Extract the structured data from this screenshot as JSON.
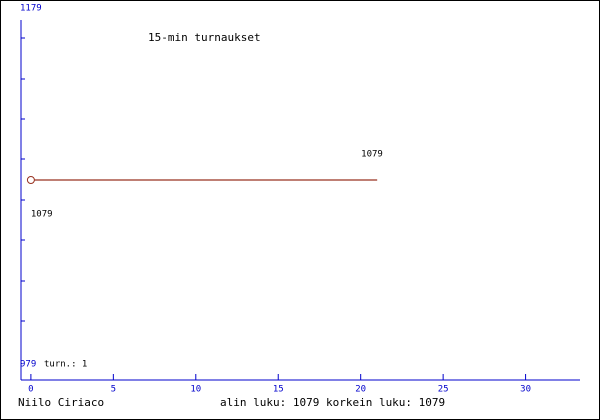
{
  "chart_data": {
    "type": "line",
    "title": "15-min turnaukset",
    "x": [
      0,
      21
    ],
    "series": [
      {
        "name": null,
        "color": "#993322",
        "values": [
          1079,
          1079
        ]
      }
    ],
    "xlim": [
      -0.6,
      33.3
    ],
    "xticks": [
      0,
      5,
      10,
      15,
      20,
      25,
      30
    ],
    "ylim": [
      979,
      1179
    ],
    "yticks": [
      979,
      1179
    ],
    "annotation": "turn.: 1",
    "footer_left": "Niilo Ciriaco",
    "footer_right": "alin luku: 1079  korkein luku: 1079"
  }
}
